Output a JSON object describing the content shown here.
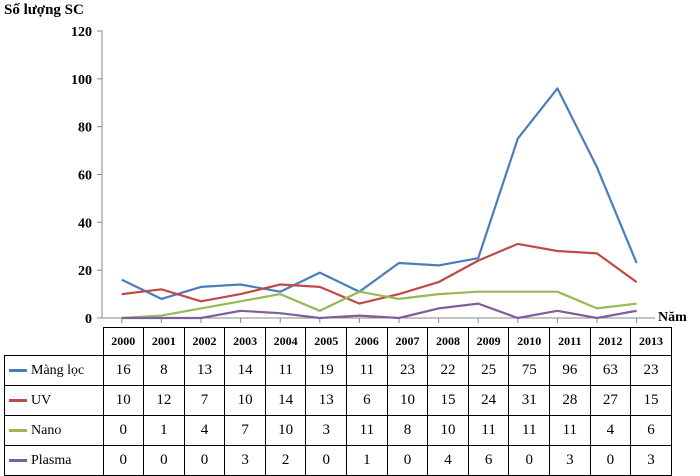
{
  "chart_data": {
    "type": "line",
    "ylabel": "Số lượng SC",
    "xlabel": "Năm",
    "ylim": [
      0,
      120
    ],
    "yticks": [
      0,
      20,
      40,
      60,
      80,
      100,
      120
    ],
    "grid": false,
    "legend": "data table below chart",
    "categories": [
      "2000",
      "2001",
      "2002",
      "2003",
      "2004",
      "2005",
      "2006",
      "2007",
      "2008",
      "2009",
      "2010",
      "2011",
      "2012",
      "2013"
    ],
    "series": [
      {
        "name": "Màng lọc",
        "color": "#4A7EBB",
        "values": [
          16,
          8,
          13,
          14,
          11,
          19,
          11,
          23,
          22,
          25,
          75,
          96,
          63,
          23
        ]
      },
      {
        "name": "UV",
        "color": "#BE4B48",
        "values": [
          10,
          12,
          7,
          10,
          14,
          13,
          6,
          10,
          15,
          24,
          31,
          28,
          27,
          15
        ]
      },
      {
        "name": "Nano",
        "color": "#98B954",
        "values": [
          0,
          1,
          4,
          7,
          10,
          3,
          11,
          8,
          10,
          11,
          11,
          11,
          4,
          6
        ]
      },
      {
        "name": "Plasma",
        "color": "#7D5FA0",
        "values": [
          0,
          0,
          0,
          3,
          2,
          0,
          1,
          0,
          4,
          6,
          0,
          3,
          0,
          3
        ]
      }
    ]
  }
}
